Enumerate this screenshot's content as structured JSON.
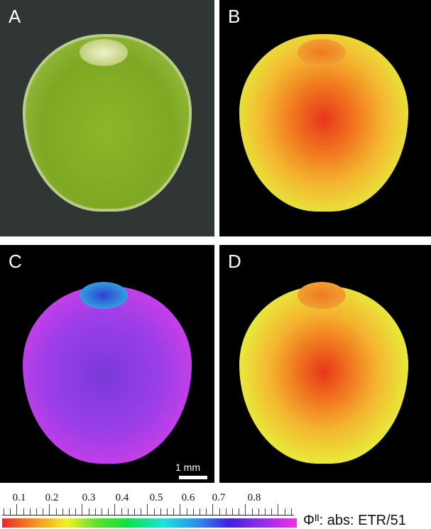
{
  "panels": [
    {
      "label": "A",
      "content": "photograph"
    },
    {
      "label": "B",
      "content": "fluorescence map"
    },
    {
      "label": "C",
      "content": "fluorescence map"
    },
    {
      "label": "D",
      "content": "fluorescence map"
    }
  ],
  "scale_bar": {
    "text": "1 mm"
  },
  "colorbar": {
    "tick_labels": [
      "0.1",
      "0.2",
      "0.3",
      "0.4",
      "0.5",
      "0.6",
      "0.7",
      "0.8"
    ],
    "label": "Φᴵᴵ: abs: ETR/51",
    "colors": [
      "#e8282a",
      "#f08a20",
      "#f0f030",
      "#10e040",
      "#20e0e0",
      "#3080e8",
      "#4020d8",
      "#9030e8",
      "#f030e0"
    ]
  }
}
